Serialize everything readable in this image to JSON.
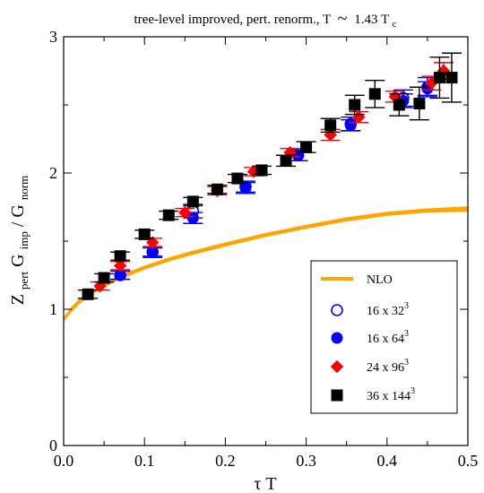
{
  "chart_data": {
    "type": "scatter",
    "title": {
      "main": "tree-level improved, pert. renorm., T",
      "approx": "~",
      "value": "1.43 T",
      "value_sub": "c"
    },
    "xlabel": "τ T",
    "ylabel": {
      "a": "Z",
      "a_sub": "pert",
      "b": " G",
      "b_sub": "imp",
      "c": " / G",
      "c_sub": "norm"
    },
    "xlim": [
      0.0,
      0.5
    ],
    "ylim": [
      0,
      3
    ],
    "xticks": [
      0.0,
      0.1,
      0.2,
      0.3,
      0.4,
      0.5
    ],
    "xtick_labels": [
      "0.0",
      "0.1",
      "0.2",
      "0.3",
      "0.4",
      "0.5"
    ],
    "yticks": [
      0,
      1,
      2,
      3
    ],
    "ytick_labels": [
      "0",
      "1",
      "2",
      "3"
    ],
    "grid": false,
    "legend_position": "bottom-right",
    "colors": {
      "nlo": "#ffa500",
      "blue": "#0000ff",
      "red": "#ff0000",
      "black": "#000000"
    },
    "nlo_band": {
      "x": [
        0.0,
        0.01,
        0.02,
        0.03,
        0.05,
        0.07,
        0.1,
        0.13,
        0.16,
        0.2,
        0.25,
        0.3,
        0.35,
        0.4,
        0.45,
        0.5
      ],
      "lower": [
        0.91,
        0.98,
        1.04,
        1.09,
        1.16,
        1.22,
        1.29,
        1.35,
        1.4,
        1.46,
        1.53,
        1.59,
        1.645,
        1.685,
        1.71,
        1.715
      ],
      "upper": [
        0.94,
        1.02,
        1.08,
        1.12,
        1.19,
        1.25,
        1.32,
        1.38,
        1.43,
        1.49,
        1.56,
        1.62,
        1.675,
        1.715,
        1.74,
        1.755
      ]
    },
    "series": [
      {
        "name": "NLO",
        "label_base": "NLO",
        "label_sup": "",
        "marker": "line",
        "color": "#ffa500",
        "points": []
      },
      {
        "name": "16 x 32^3",
        "label_base": "16 x 32",
        "label_sup": "3",
        "marker": "open-circle",
        "color": "#0000ff",
        "points": [
          {
            "x": 0.07,
            "y": 1.25,
            "err": 0.03
          },
          {
            "x": 0.11,
            "y": 1.42,
            "err": 0.04
          },
          {
            "x": 0.16,
            "y": 1.72,
            "err": 0.05
          },
          {
            "x": 0.225,
            "y": 1.9,
            "err": 0.04
          },
          {
            "x": 0.29,
            "y": 2.13,
            "err": 0.04
          },
          {
            "x": 0.355,
            "y": 2.36,
            "err": 0.05
          },
          {
            "x": 0.42,
            "y": 2.55,
            "err": 0.06
          },
          {
            "x": 0.45,
            "y": 2.63,
            "err": 0.07
          }
        ]
      },
      {
        "name": "16 x 64^3",
        "label_base": "16 x 64",
        "label_sup": "3",
        "marker": "filled-circle",
        "color": "#0000ff",
        "points": [
          {
            "x": 0.07,
            "y": 1.25,
            "err": 0.03
          },
          {
            "x": 0.11,
            "y": 1.42,
            "err": 0.03
          },
          {
            "x": 0.16,
            "y": 1.67,
            "err": 0.04
          },
          {
            "x": 0.225,
            "y": 1.89,
            "err": 0.04
          },
          {
            "x": 0.29,
            "y": 2.13,
            "err": 0.04
          },
          {
            "x": 0.355,
            "y": 2.35,
            "err": 0.04
          },
          {
            "x": 0.42,
            "y": 2.53,
            "err": 0.05
          },
          {
            "x": 0.45,
            "y": 2.62,
            "err": 0.05
          }
        ]
      },
      {
        "name": "24 x 96^3",
        "label_base": "24 x 96",
        "label_sup": "3",
        "marker": "diamond",
        "color": "#ff0000",
        "points": [
          {
            "x": 0.045,
            "y": 1.17,
            "err": 0.03
          },
          {
            "x": 0.07,
            "y": 1.32,
            "err": 0.03
          },
          {
            "x": 0.11,
            "y": 1.49,
            "err": 0.03
          },
          {
            "x": 0.15,
            "y": 1.71,
            "err": 0.03
          },
          {
            "x": 0.19,
            "y": 1.87,
            "err": 0.03
          },
          {
            "x": 0.235,
            "y": 2.01,
            "err": 0.03
          },
          {
            "x": 0.28,
            "y": 2.15,
            "err": 0.03
          },
          {
            "x": 0.33,
            "y": 2.28,
            "err": 0.04
          },
          {
            "x": 0.365,
            "y": 2.41,
            "err": 0.04
          },
          {
            "x": 0.41,
            "y": 2.56,
            "err": 0.04
          },
          {
            "x": 0.455,
            "y": 2.66,
            "err": 0.05
          },
          {
            "x": 0.47,
            "y": 2.75,
            "err": 0.06
          }
        ]
      },
      {
        "name": "36 x 144^3",
        "label_base": "36 x 144",
        "label_sup": "3",
        "marker": "square",
        "color": "#000000",
        "points": [
          {
            "x": 0.03,
            "y": 1.11,
            "err": 0.03
          },
          {
            "x": 0.05,
            "y": 1.23,
            "err": 0.03
          },
          {
            "x": 0.07,
            "y": 1.39,
            "err": 0.03
          },
          {
            "x": 0.1,
            "y": 1.55,
            "err": 0.03
          },
          {
            "x": 0.13,
            "y": 1.69,
            "err": 0.03
          },
          {
            "x": 0.16,
            "y": 1.79,
            "err": 0.03
          },
          {
            "x": 0.19,
            "y": 1.88,
            "err": 0.03
          },
          {
            "x": 0.215,
            "y": 1.96,
            "err": 0.03
          },
          {
            "x": 0.245,
            "y": 2.02,
            "err": 0.03
          },
          {
            "x": 0.275,
            "y": 2.09,
            "err": 0.04
          },
          {
            "x": 0.3,
            "y": 2.19,
            "err": 0.04
          },
          {
            "x": 0.33,
            "y": 2.35,
            "err": 0.05
          },
          {
            "x": 0.36,
            "y": 2.5,
            "err": 0.07
          },
          {
            "x": 0.385,
            "y": 2.58,
            "err": 0.1
          },
          {
            "x": 0.415,
            "y": 2.5,
            "err": 0.08
          },
          {
            "x": 0.44,
            "y": 2.51,
            "err": 0.12
          },
          {
            "x": 0.465,
            "y": 2.7,
            "err": 0.15
          },
          {
            "x": 0.48,
            "y": 2.7,
            "err": 0.18
          }
        ]
      }
    ]
  }
}
